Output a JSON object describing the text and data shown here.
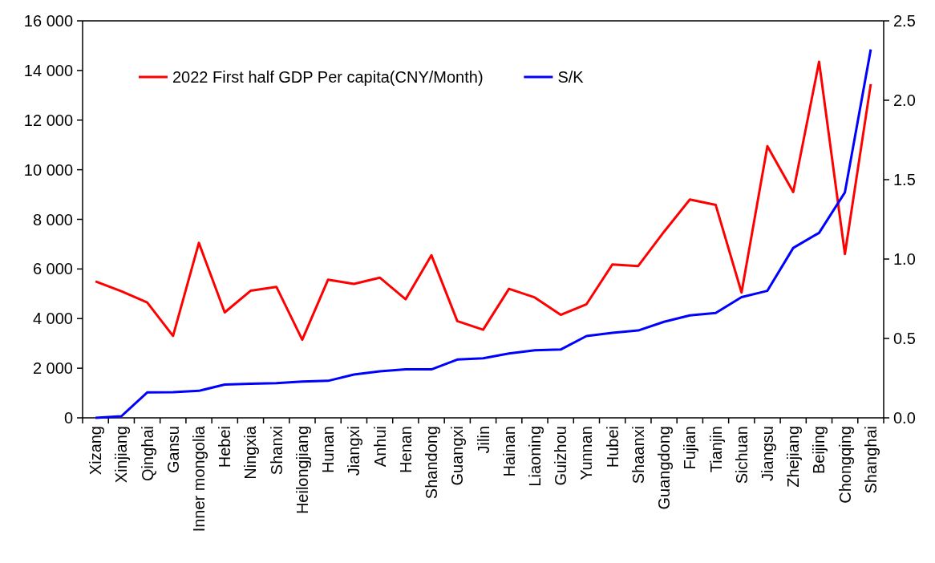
{
  "chart_data": {
    "type": "line",
    "categories": [
      "Xizang",
      "Xinjiang",
      "Qinghai",
      "Gansu",
      "Inner mongolia",
      "Hebei",
      "Ningxia",
      "Shanxi",
      "Heilongjiang",
      "Hunan",
      "Jiangxi",
      "Anhui",
      "Henan",
      "Shandong",
      "Guangxi",
      "Jilin",
      "Hainan",
      "Liaoning",
      "Guizhou",
      "Yunnan",
      "Hubei",
      "Shaanxi",
      "Guangdong",
      "Fujian",
      "Tianjin",
      "Sichuan",
      "Jiangsu",
      "Zhejiang",
      "Beijing",
      "Chongqing",
      "Shanghai"
    ],
    "series": [
      {
        "name": "2022 First half GDP Per capita(CNY/Month)",
        "color": "#ff0000",
        "values": [
          5500,
          5100,
          4650,
          3300,
          7050,
          4250,
          5120,
          5280,
          3150,
          5570,
          5400,
          5650,
          4780,
          6550,
          3900,
          3550,
          5200,
          4850,
          4150,
          4580,
          6180,
          6120,
          7500,
          8800,
          8580,
          5050,
          10950,
          9100,
          14350,
          6600,
          13450
        ]
      },
      {
        "name": "S/K",
        "color": "#0000ff",
        "axis": "y2",
        "values": [
          0,
          0.01,
          0.16,
          0.162,
          0.17,
          0.21,
          0.215,
          0.218,
          0.228,
          0.233,
          0.273,
          0.293,
          0.305,
          0.305,
          0.367,
          0.375,
          0.405,
          0.425,
          0.43,
          0.515,
          0.535,
          0.55,
          0.605,
          0.645,
          0.66,
          0.76,
          0.8,
          1.07,
          1.165,
          1.42,
          2.32
        ]
      }
    ],
    "ylim": [
      0,
      16000
    ],
    "yticks": [
      {
        "value": 0,
        "label": "0"
      },
      {
        "value": 2000,
        "label": "2 000"
      },
      {
        "value": 4000,
        "label": "4 000"
      },
      {
        "value": 6000,
        "label": "6 000"
      },
      {
        "value": 8000,
        "label": "8 000"
      },
      {
        "value": 10000,
        "label": "10 000"
      },
      {
        "value": 12000,
        "label": "12 000"
      },
      {
        "value": 14000,
        "label": "14 000"
      },
      {
        "value": 16000,
        "label": "16 000"
      }
    ],
    "y2lim": [
      0,
      2.5
    ],
    "y2ticks": [
      {
        "value": 0,
        "label": "0.0"
      },
      {
        "value": 0.5,
        "label": "0.5"
      },
      {
        "value": 1,
        "label": "1.0"
      },
      {
        "value": 1.5,
        "label": "1.5"
      },
      {
        "value": 2,
        "label": "2.0"
      },
      {
        "value": 2.5,
        "label": "2.5"
      }
    ],
    "grid": false,
    "legend": "top left",
    "marker": "none",
    "line_style": "solid"
  }
}
